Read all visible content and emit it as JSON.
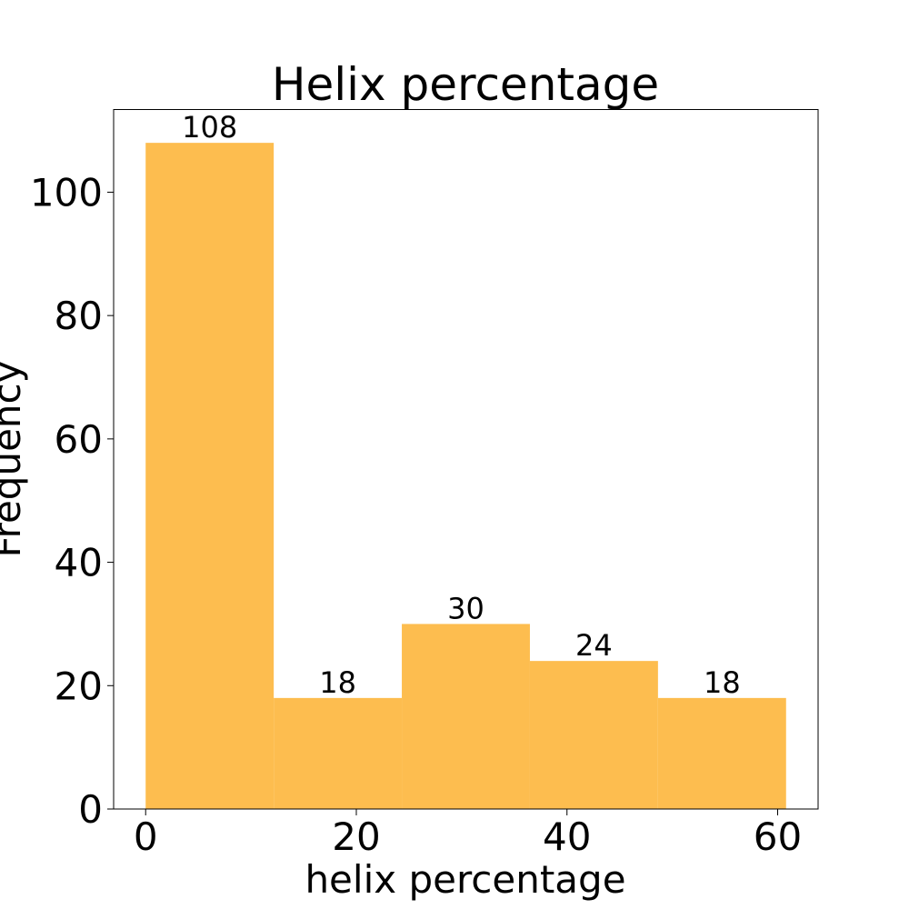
{
  "chart_data": {
    "type": "bar",
    "title": "Helix percentage",
    "xlabel": "helix percentage",
    "ylabel": "Frequency",
    "bins": [
      {
        "x0": 0.0,
        "x1": 12.16,
        "value": 108
      },
      {
        "x0": 12.16,
        "x1": 24.32,
        "value": 18
      },
      {
        "x0": 24.32,
        "x1": 36.48,
        "value": 30
      },
      {
        "x0": 36.48,
        "x1": 48.64,
        "value": 24
      },
      {
        "x0": 48.64,
        "x1": 60.8,
        "value": 18
      }
    ],
    "data_labels": [
      "108",
      "18",
      "30",
      "24",
      "18"
    ],
    "xticks": [
      0,
      20,
      40,
      60
    ],
    "xtick_labels": [
      "0",
      "20",
      "40",
      "60"
    ],
    "yticks": [
      0,
      20,
      40,
      60,
      80,
      100
    ],
    "ytick_labels": [
      "0",
      "20",
      "40",
      "60",
      "80",
      "100"
    ],
    "xlim": [
      -3.04,
      63.84
    ],
    "ylim": [
      0,
      113.4
    ],
    "grid": false,
    "bar_color": "#fdbd4f"
  }
}
